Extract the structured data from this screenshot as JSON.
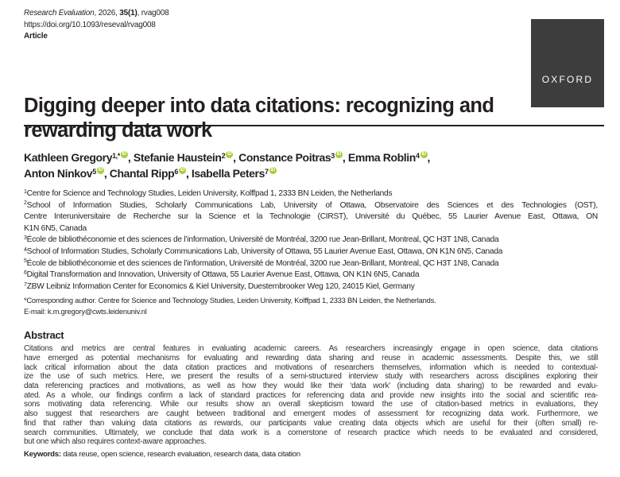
{
  "header": {
    "journal": "Research Evaluation",
    "year_etc": ", 2026, ",
    "volume": "35",
    "issue": "(1)",
    "article_id": ", rvag008",
    "doi": "https://doi.org/10.1093/reseval/rvag008",
    "article_type": "Article",
    "publisher_logo": "OXFORD",
    "logo_color": "#3d3d3d"
  },
  "title": [
    "Digging deeper into data citations: recognizing and",
    "rewarding data work"
  ],
  "authors": [
    {
      "name": "Kathleen Gregory",
      "aff": "1,*",
      "sep": ", "
    },
    {
      "name": "Stefanie Haustein",
      "aff": "2",
      "sep": ", "
    },
    {
      "name": "Constance Poitras",
      "aff": "3",
      "sep": ", "
    },
    {
      "name": "Emma Roblin",
      "aff": "4",
      "sep": ","
    },
    {
      "name": "Anton Ninkov",
      "aff": "5",
      "sep": ", "
    },
    {
      "name": "Chantal Ripp",
      "aff": "6",
      "sep": ", "
    },
    {
      "name": "Isabella Peters",
      "aff": "7",
      "sep": ""
    }
  ],
  "orcid_icon": "orcid-icon",
  "affiliations": [
    {
      "num": "1",
      "lines": [
        "Centre for Science and Technology Studies, Leiden University, Kolffpad 1, 2333 BN Leiden, the Netherlands"
      ]
    },
    {
      "num": "2",
      "lines": [
        "School of Information Studies, Scholarly Communications Lab, University of Ottawa, Observatoire des Sciences et des Technologies (OST),",
        "Centre Interuniversitaire de Recherche sur la Science et la Technologie (CIRST), Université du Québec, 55 Laurier Avenue East, Ottawa, ON",
        "K1N 6N5, Canada"
      ]
    },
    {
      "num": "3",
      "lines": [
        "École de bibliothéconomie et des sciences de l’information, Université de Montréal, 3200 rue Jean-Brillant, Montreal, QC H3T 1N8, Canada"
      ]
    },
    {
      "num": "4",
      "lines": [
        "School of Information Studies, Scholarly Communications Lab, University of Ottawa, 55 Laurier Avenue East, Ottawa, ON K1N 6N5, Canada"
      ]
    },
    {
      "num": "5",
      "lines": [
        "École de bibliothéconomie et des sciences de l’information, Université de Montréal, 3200 rue Jean-Brillant, Montreal, QC H3T 1N8, Canada"
      ]
    },
    {
      "num": "6",
      "lines": [
        "Digital Transformation and Innovation, University of Ottawa, 55 Laurier Avenue East, Ottawa, ON K1N 6N5, Canada"
      ]
    },
    {
      "num": "7",
      "lines": [
        "ZBW Leibniz Information Center for Economics & Kiel University, Duesternbrooker Weg 120, 24015 Kiel, Germany"
      ]
    }
  ],
  "corresponding": "*Corresponding author. Centre for Science and Technology Studies, Leiden University, Kolffpad 1, 2333 BN Leiden, the Netherlands.",
  "email": "E-mail: k.m.gregory@cwts.leidenuniv.nl",
  "abstract": {
    "heading": "Abstract",
    "lines": [
      "Citations and metrics are central features in evaluating academic careers. As researchers increasingly engage in open science, data citations",
      "have emerged as potential mechanisms for evaluating and rewarding data sharing and reuse in academic assessments. Despite this, we still",
      "lack critical information about the data citation practices and motivations of researchers themselves, information which is needed to contextual-",
      "ize the use of such metrics. Here, we present the results of a semi-structured interview study with researchers across disciplines exploring their",
      "data referencing practices and motivations, as well as how they would like their ‘data work’ (including data sharing) to be rewarded and evalu-",
      "ated. As a whole, our findings confirm a lack of standard practices for referencing data and provide new insights into the social and scientific rea-",
      "sons motivating data referencing. While our results show an overall skepticism toward the use of citation-based metrics in evaluations, they",
      "also suggest that researchers are caught between traditional and emergent modes of assessment for recognizing data work. Furthermore, we",
      "find that rather than valuing data citations as rewards, our participants value creating data objects which are useful for their (often small) re-",
      "search communities. Ultimately, we conclude that data work is a cornerstone of research practice which needs to be evaluated and considered,",
      "but one which also requires context-aware approaches."
    ]
  },
  "keywords": {
    "label": "Keywords:",
    "text": " data reuse, open science, research evaluation, research data, data citation"
  }
}
